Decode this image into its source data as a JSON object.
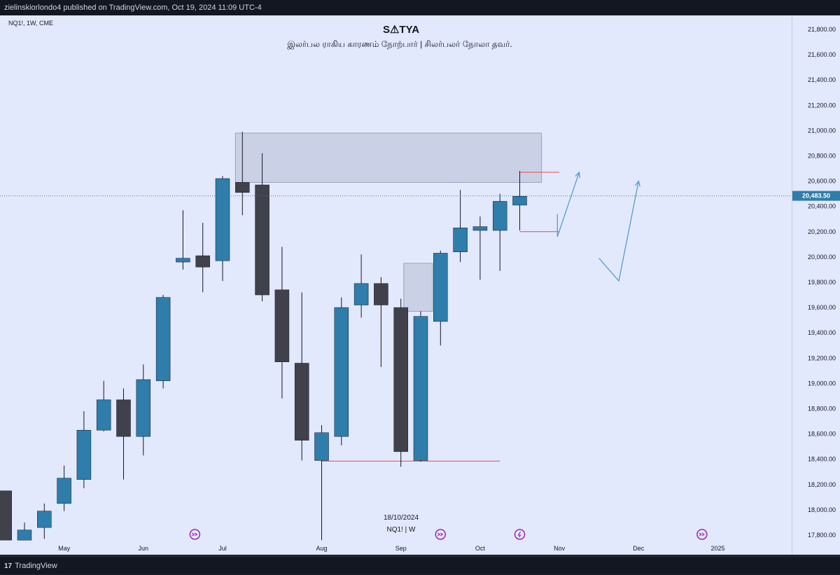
{
  "header": {
    "published_text": "zielinskiorlondo4 published on TradingView.com, Oct 19, 2024 11:09 UTC-4"
  },
  "chart_header": {
    "symbol_info": "NQ1!, 1W, CME"
  },
  "watermark": {
    "title": "S⚠TYA",
    "subtitle": "இலர்பல ராகிய காரணம் நோற்பார் | சிலர்பலர் நோலா தவர்."
  },
  "date_label": "18/10/2024",
  "symbol_label": "NQ1! | W",
  "footer": {
    "brand": "TradingView",
    "logo": "17"
  },
  "colors": {
    "up": "#2e7dab",
    "down": "#40414b",
    "zone": "#c5cbe0",
    "arrow": "#4c97c2",
    "level": "#e14b4b",
    "background": "#e3e9fd"
  },
  "chart_data": {
    "type": "candlestick",
    "title": "",
    "ylim": [
      17740,
      21940
    ],
    "y_ticks": [
      17800,
      18000,
      18200,
      18400,
      18600,
      18800,
      19000,
      19200,
      19400,
      19600,
      19800,
      20000,
      20200,
      20400,
      20600,
      20800,
      21000,
      21200,
      21400,
      21600,
      21800
    ],
    "y_tick_labels": [
      "17,800.00",
      "18,000.00",
      "18,200.00",
      "18,400.00",
      "18,600.00",
      "18,800.00",
      "19,000.00",
      "19,200.00",
      "19,400.00",
      "19,600.00",
      "19,800.00",
      "20,000.00",
      "20,200.00",
      "20,400.00",
      "20,600.00",
      "20,800.00",
      "21,000.00",
      "21,200.00",
      "21,400.00",
      "21,600.00",
      "21,800.00"
    ],
    "x_labels": [
      {
        "label": "May",
        "week": 2
      },
      {
        "label": "Jun",
        "week": 6
      },
      {
        "label": "Jul",
        "week": 10
      },
      {
        "label": "Aug",
        "week": 15
      },
      {
        "label": "Sep",
        "week": 19
      },
      {
        "label": "Oct",
        "week": 23
      },
      {
        "label": "Nov",
        "week": 27
      },
      {
        "label": "Dec",
        "week": 31
      },
      {
        "label": "2025",
        "week": 35
      }
    ],
    "candles": [
      {
        "week": -1,
        "open": 18150,
        "high": 18150,
        "low": 17760,
        "close": 17760
      },
      {
        "week": 0,
        "open": 17760,
        "high": 17900,
        "low": 17760,
        "close": 17840
      },
      {
        "week": 1,
        "open": 17860,
        "high": 18050,
        "low": 17770,
        "close": 17990
      },
      {
        "week": 2,
        "open": 18050,
        "high": 18350,
        "low": 17990,
        "close": 18250
      },
      {
        "week": 3,
        "open": 18240,
        "high": 18780,
        "low": 18170,
        "close": 18630
      },
      {
        "week": 4,
        "open": 18630,
        "high": 19020,
        "low": 18620,
        "close": 18870
      },
      {
        "week": 5,
        "open": 18870,
        "high": 18960,
        "low": 18240,
        "close": 18580
      },
      {
        "week": 6,
        "open": 18580,
        "high": 19150,
        "low": 18430,
        "close": 19030
      },
      {
        "week": 7,
        "open": 19020,
        "high": 19700,
        "low": 18960,
        "close": 19680
      },
      {
        "week": 8,
        "open": 19960,
        "high": 20370,
        "low": 19900,
        "close": 19990
      },
      {
        "week": 9,
        "open": 20010,
        "high": 20270,
        "low": 19720,
        "close": 19920
      },
      {
        "week": 10,
        "open": 19970,
        "high": 20640,
        "low": 19810,
        "close": 20620
      },
      {
        "week": 11,
        "open": 20590,
        "high": 20990,
        "low": 20330,
        "close": 20510
      },
      {
        "week": 12,
        "open": 20570,
        "high": 20820,
        "low": 19650,
        "close": 19700
      },
      {
        "week": 13,
        "open": 19740,
        "high": 20080,
        "low": 18880,
        "close": 19170
      },
      {
        "week": 14,
        "open": 19160,
        "high": 19720,
        "low": 18390,
        "close": 18550
      },
      {
        "week": 15,
        "open": 18390,
        "high": 18670,
        "low": 17760,
        "close": 18610
      },
      {
        "week": 16,
        "open": 18580,
        "high": 19680,
        "low": 18510,
        "close": 19600
      },
      {
        "week": 17,
        "open": 19620,
        "high": 20020,
        "low": 19520,
        "close": 19790
      },
      {
        "week": 18,
        "open": 19790,
        "high": 19840,
        "low": 19130,
        "close": 19620
      },
      {
        "week": 19,
        "open": 19600,
        "high": 19670,
        "low": 18340,
        "close": 18460
      },
      {
        "week": 20,
        "open": 18390,
        "high": 19570,
        "low": 18380,
        "close": 19530
      },
      {
        "week": 21,
        "open": 19490,
        "high": 20050,
        "low": 19300,
        "close": 20030
      },
      {
        "week": 22,
        "open": 20040,
        "high": 20530,
        "low": 19960,
        "close": 20230
      },
      {
        "week": 23,
        "open": 20210,
        "high": 20320,
        "low": 19820,
        "close": 20240
      },
      {
        "week": 24,
        "open": 20210,
        "high": 20500,
        "low": 19890,
        "close": 20440
      },
      {
        "week": 25,
        "open": 20410,
        "high": 20680,
        "low": 20210,
        "close": 20480
      }
    ],
    "zones": [
      {
        "week_start": 11,
        "week_end": 26.1,
        "top": 20980,
        "bottom": 20590
      },
      {
        "week_start": 19.5,
        "week_end": 20.6,
        "top": 19950,
        "bottom": 19570
      }
    ],
    "levels": [
      {
        "week_start": 15,
        "week_end": 24,
        "price": 18385
      },
      {
        "week_start": 25,
        "week_end": 27,
        "price": 20670
      },
      {
        "week_start": 25,
        "week_end": 27,
        "price": 20200
      }
    ],
    "arrows": [
      [
        {
          "week": 26.9,
          "price": 20340
        },
        {
          "week": 26.9,
          "price": 20160
        },
        {
          "week": 28,
          "price": 20670
        }
      ],
      [
        {
          "week": 29,
          "price": 19990
        },
        {
          "week": 30,
          "price": 19810
        },
        {
          "week": 31,
          "price": 20600
        }
      ]
    ],
    "last_price": 20483.5,
    "last_price_label": "20,483.50",
    "event_markers": [
      {
        "week": 8.6,
        "type": "dividend"
      },
      {
        "week": 21,
        "type": "dividend"
      },
      {
        "week": 25,
        "type": "split"
      },
      {
        "week": 34.2,
        "type": "dividend"
      }
    ]
  }
}
